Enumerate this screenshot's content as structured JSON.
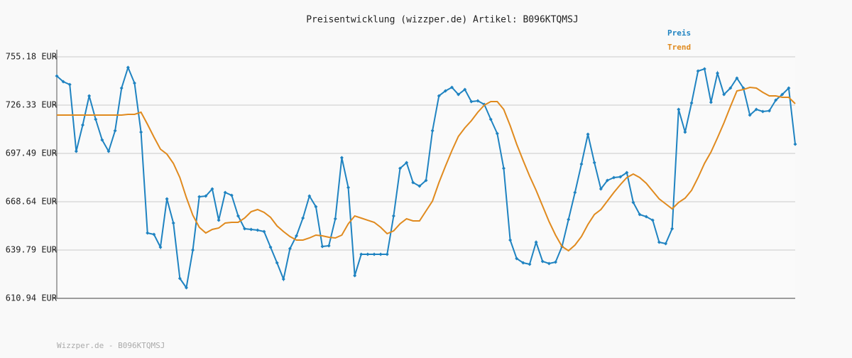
{
  "chart_data": {
    "type": "line",
    "title": "Preisentwicklung (wizzper.de) Artikel: B096KTQMSJ",
    "footer": "Wizzper.de - B096KTQMSJ",
    "ylim": [
      610.94,
      755.18
    ],
    "yticks": [
      {
        "value": 610.94,
        "label": "610.94 EUR"
      },
      {
        "value": 639.79,
        "label": "639.79 EUR"
      },
      {
        "value": 668.64,
        "label": "668.64 EUR"
      },
      {
        "value": 697.49,
        "label": "697.49 EUR"
      },
      {
        "value": 726.33,
        "label": "726.33 EUR"
      },
      {
        "value": 755.18,
        "label": "755.18 EUR"
      }
    ],
    "grid": true,
    "legend": "top-right",
    "series": [
      {
        "name": "Preis",
        "color": "#1f83c1",
        "markers": true,
        "values": [
          743.73,
          740.33,
          738.63,
          698.76,
          714.45,
          731.85,
          717.85,
          705.54,
          698.76,
          711.06,
          736.51,
          748.82,
          739.48,
          710.21,
          649.97,
          649.12,
          641.48,
          670.33,
          655.91,
          622.82,
          617.3,
          639.79,
          671.6,
          672.03,
          676.27,
          657.6,
          674.15,
          672.45,
          660.15,
          652.51,
          652.09,
          651.67,
          650.82,
          641.48,
          632.15,
          622.39,
          640.64,
          648.27,
          658.88,
          672.03,
          665.67,
          641.91,
          642.33,
          658.45,
          694.94,
          677.12,
          624.51,
          637.24,
          637.24,
          637.24,
          637.24,
          637.24,
          660.15,
          688.57,
          691.97,
          680.09,
          677.97,
          681.36,
          711.06,
          731.85,
          734.82,
          736.94,
          732.7,
          735.66,
          728.45,
          728.88,
          726.76,
          717.85,
          709.36,
          688.57,
          645.73,
          634.7,
          632.15,
          631.3,
          644.45,
          633.0,
          631.73,
          632.57,
          641.91,
          658.03,
          674.15,
          691.12,
          708.94,
          691.97,
          676.27,
          681.36,
          683.06,
          683.48,
          686.03,
          668.21,
          661.0,
          659.73,
          657.6,
          644.45,
          643.6,
          652.51,
          723.79,
          710.21,
          727.6,
          746.7,
          747.97,
          728.03,
          745.42,
          732.7,
          736.51,
          742.45,
          736.51,
          720.39,
          723.79,
          722.51,
          722.94,
          729.3,
          732.7,
          736.51,
          703.0
        ]
      },
      {
        "name": "Trend",
        "color": "#e08a1e",
        "markers": false,
        "values": [
          720.39,
          720.39,
          720.39,
          720.39,
          720.39,
          720.39,
          720.39,
          720.39,
          720.39,
          720.39,
          720.39,
          720.82,
          720.82,
          722.09,
          714.88,
          707.24,
          700.03,
          697.06,
          691.54,
          683.06,
          671.18,
          660.57,
          653.36,
          649.97,
          652.09,
          652.94,
          655.91,
          656.33,
          656.33,
          658.88,
          662.7,
          663.97,
          662.27,
          659.3,
          654.21,
          650.82,
          647.85,
          645.73,
          645.73,
          647.0,
          648.7,
          648.27,
          647.42,
          647.0,
          648.7,
          655.48,
          660.15,
          658.88,
          657.6,
          656.33,
          653.36,
          649.55,
          651.24,
          655.48,
          658.45,
          657.18,
          657.18,
          663.12,
          669.06,
          680.09,
          689.85,
          699.18,
          707.67,
          712.76,
          717.0,
          722.09,
          726.33,
          728.45,
          728.45,
          723.79,
          714.03,
          703.0,
          693.24,
          683.91,
          675.42,
          666.09,
          656.76,
          648.7,
          641.91,
          639.36,
          642.75,
          647.85,
          655.06,
          661.0,
          663.97,
          669.06,
          674.15,
          678.82,
          683.06,
          685.18,
          683.06,
          679.67,
          675.0,
          670.33,
          667.36,
          664.39,
          668.21,
          670.76,
          675.42,
          683.06,
          691.54,
          698.33,
          706.82,
          715.73,
          725.48,
          734.82,
          735.66,
          736.94,
          736.51,
          733.97,
          731.85,
          731.85,
          731.0,
          731.0,
          727.18
        ]
      }
    ]
  }
}
